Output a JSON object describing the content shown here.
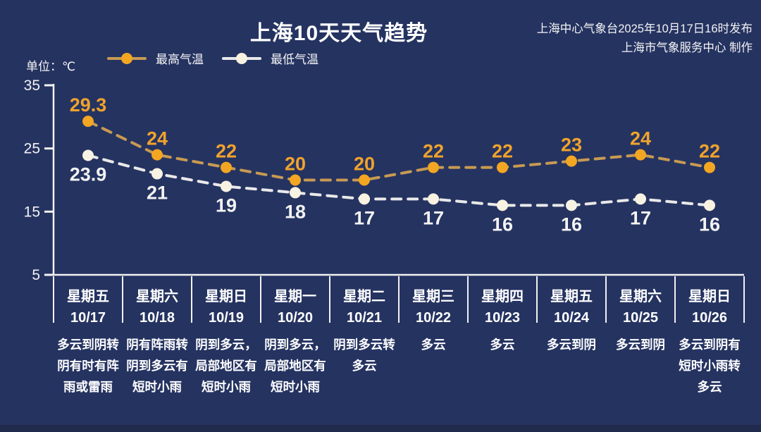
{
  "header": {
    "title": "上海10天天气趋势",
    "issue_line1": "上海中心气象台2025年10月17日16时发布",
    "issue_line2": "上海市气象服务中心 制作"
  },
  "unit_label": "单位：℃",
  "legend": [
    {
      "label": "最高气温",
      "dot_color": "#f3a622",
      "line_color": "#c79a52"
    },
    {
      "label": "最低气温",
      "dot_color": "#f8f2e2",
      "line_color": "#e9e9e9"
    }
  ],
  "chart_data": {
    "type": "line",
    "title": "上海10天天气趋势",
    "x": [
      "10/17",
      "10/18",
      "10/19",
      "10/20",
      "10/21",
      "10/22",
      "10/23",
      "10/24",
      "10/25",
      "10/26"
    ],
    "series": [
      {
        "name": "最高气温",
        "values": [
          29.3,
          24,
          22,
          20,
          20,
          22,
          22,
          23,
          24,
          22
        ],
        "color": "#f3a622",
        "line_color": "#c79a52",
        "label_color": "#f0a32c"
      },
      {
        "name": "最低气温",
        "values": [
          23.9,
          21,
          19,
          18,
          17,
          17,
          16,
          16,
          17,
          16
        ],
        "color": "#f8f2e2",
        "line_color": "#e9e9e9",
        "label_color": "#f3f3f3"
      }
    ],
    "ylabel": "单位：℃",
    "yticks": [
      35,
      25,
      15,
      5
    ],
    "ylim": [
      5,
      35
    ],
    "grid": false,
    "line_style": "dashed",
    "legend_position": "top"
  },
  "days": [
    {
      "weekday": "星期五",
      "date": "10/17",
      "desc_lines": [
        "多云到阴转",
        "阴有时有阵",
        "雨或雷雨"
      ]
    },
    {
      "weekday": "星期六",
      "date": "10/18",
      "desc_lines": [
        "阴有阵雨转",
        "阴到多云有",
        "短时小雨"
      ]
    },
    {
      "weekday": "星期日",
      "date": "10/19",
      "desc_lines": [
        "阴到多云，",
        "局部地区有",
        "短时小雨"
      ]
    },
    {
      "weekday": "星期一",
      "date": "10/20",
      "desc_lines": [
        "阴到多云，",
        "局部地区有",
        "短时小雨"
      ]
    },
    {
      "weekday": "星期二",
      "date": "10/21",
      "desc_lines": [
        "阴到多云转",
        "多云"
      ]
    },
    {
      "weekday": "星期三",
      "date": "10/22",
      "desc_lines": [
        "多云"
      ]
    },
    {
      "weekday": "星期四",
      "date": "10/23",
      "desc_lines": [
        "多云"
      ]
    },
    {
      "weekday": "星期五",
      "date": "10/24",
      "desc_lines": [
        "多云到阴"
      ]
    },
    {
      "weekday": "星期六",
      "date": "10/25",
      "desc_lines": [
        "多云到阴"
      ]
    },
    {
      "weekday": "星期日",
      "date": "10/26",
      "desc_lines": [
        "多云到阴有",
        "短时小雨转",
        "多云"
      ]
    }
  ],
  "colors": {
    "background": "#253361",
    "axis": "#f2f2f2",
    "footer_strip": "#1f2a4d"
  }
}
